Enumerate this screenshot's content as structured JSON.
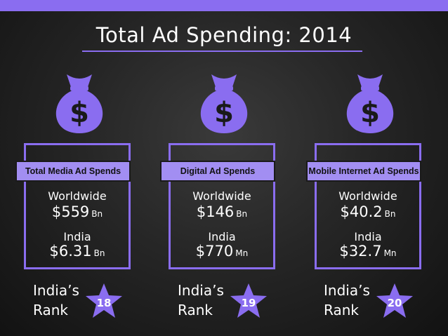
{
  "title": "Total Ad Spending: 2014",
  "colors": {
    "accent": "#8a6df0",
    "label_bar": "#a28ef2",
    "background": "#262626",
    "text": "#ffffff"
  },
  "icons": {
    "bag": "money-bag-icon",
    "star": "star-icon"
  },
  "cards": [
    {
      "bag_symbol": "$",
      "label": "Total Media Ad Spends",
      "worldwide_label": "Worldwide",
      "worldwide_value": "$559",
      "worldwide_unit": "Bn",
      "india_label": "India",
      "india_value": "$6.31",
      "india_unit": "Bn",
      "rank_line1": "India’s",
      "rank_line2": "Rank",
      "rank": "18"
    },
    {
      "bag_symbol": "$",
      "label": "Digital Ad Spends",
      "worldwide_label": "Worldwide",
      "worldwide_value": "$146",
      "worldwide_unit": "Bn",
      "india_label": "India",
      "india_value": "$770",
      "india_unit": "Mn",
      "rank_line1": "India’s",
      "rank_line2": "Rank",
      "rank": "19"
    },
    {
      "bag_symbol": "$",
      "label": "Mobile Internet Ad Spends",
      "worldwide_label": "Worldwide",
      "worldwide_value": "$40.2",
      "worldwide_unit": "Bn",
      "india_label": "India",
      "india_value": "$32.7",
      "india_unit": "Mn",
      "rank_line1": "India’s",
      "rank_line2": "Rank",
      "rank": "20"
    }
  ]
}
